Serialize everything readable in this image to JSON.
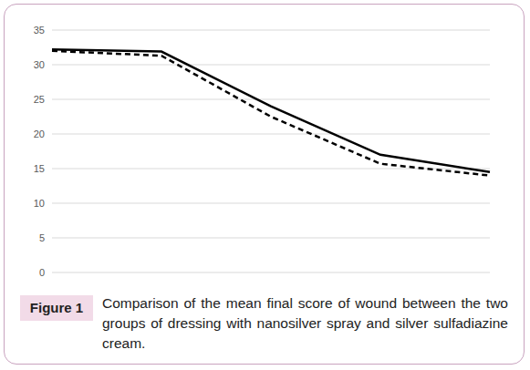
{
  "chart_data": {
    "type": "line",
    "categories": [
      null,
      null,
      null,
      null,
      null
    ],
    "series": [
      {
        "color": "#000000",
        "line_style": "solid",
        "values": [
          32.2,
          31.9,
          24.0,
          17.0,
          14.5
        ]
      },
      {
        "color": "#000000",
        "line_style": "dashed",
        "values": [
          32.0,
          31.3,
          22.5,
          15.7,
          14.0
        ]
      }
    ],
    "ylim": [
      0,
      35
    ],
    "yticks": [
      0,
      5,
      10,
      15,
      20,
      25,
      30,
      35
    ],
    "grid": true,
    "tick_labels": "y"
  },
  "caption": {
    "label": "Figure 1",
    "text": "Comparison of the mean final score of wound between the two groups of dressing with nanosilver spray and silver sulfadiazine cream."
  }
}
